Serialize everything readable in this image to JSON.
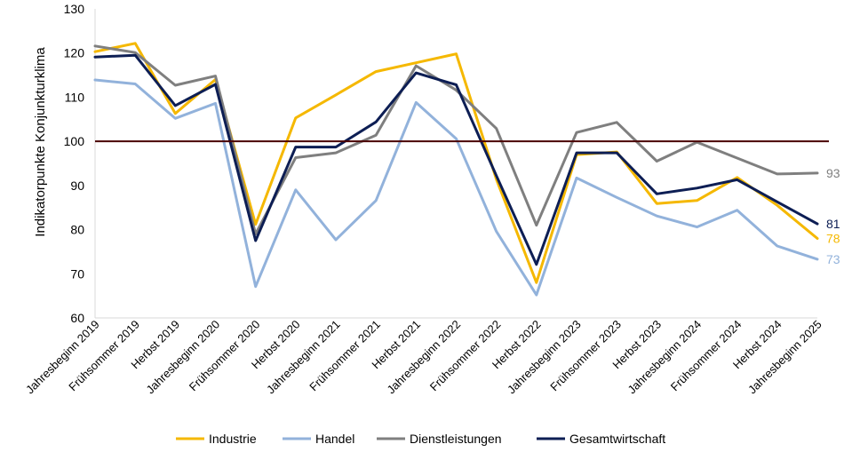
{
  "chart_data": {
    "type": "line",
    "title": "",
    "xlabel": "",
    "ylabel": "Indikatorpunkte Konjunkturklima",
    "ylim": [
      60,
      130
    ],
    "yticks": [
      60,
      70,
      80,
      90,
      100,
      110,
      120,
      130
    ],
    "grid": false,
    "reference_line": 100,
    "legend_position": "bottom",
    "categories": [
      "Jahresbeginn 2019",
      "Frühsommer 2019",
      "Herbst 2019",
      "Jahresbeginn 2020",
      "Frühsommer 2020",
      "Herbst 2020",
      "Jahresbeginn 2021",
      "Frühsommer 2021",
      "Herbst 2021",
      "Jahresbeginn 2022",
      "Frühsommer 2022",
      "Herbst 2022",
      "Jahresbeginn 2023",
      "Frühsommer 2023",
      "Herbst 2023",
      "Jahresbeginn 2024",
      "Frühsommer 2024",
      "Herbst 2024",
      "Jahresbeginn 2025"
    ],
    "series": [
      {
        "name": "Industrie",
        "color": "#F5B800",
        "end_label": "78",
        "values": [
          120.3,
          122.2,
          106.3,
          114.0,
          81.2,
          105.3,
          110.5,
          115.8,
          117.8,
          119.8,
          91.4,
          68.0,
          97.0,
          97.6,
          85.9,
          86.6,
          91.8,
          85.5,
          78.0
        ]
      },
      {
        "name": "Handel",
        "color": "#92B2DB",
        "end_label": "73",
        "values": [
          113.9,
          113.0,
          105.2,
          108.6,
          67.1,
          89.0,
          77.7,
          86.6,
          108.8,
          100.6,
          79.6,
          65.2,
          91.7,
          87.3,
          83.1,
          80.6,
          84.4,
          76.3,
          73.3
        ]
      },
      {
        "name": "Dienstleistungen",
        "color": "#7F7F7F",
        "end_label": "93",
        "values": [
          121.6,
          120.1,
          112.7,
          114.8,
          79.0,
          96.3,
          97.4,
          101.4,
          117.1,
          111.6,
          102.9,
          81.0,
          102.0,
          104.3,
          95.5,
          99.8,
          96.2,
          92.6,
          92.8
        ]
      },
      {
        "name": "Gesamtwirtschaft",
        "color": "#0D1E54",
        "end_label": "81",
        "values": [
          119.1,
          119.5,
          108.1,
          112.9,
          77.5,
          98.7,
          98.7,
          104.4,
          115.5,
          112.8,
          92.2,
          72.1,
          97.4,
          97.4,
          88.1,
          89.4,
          91.3,
          86.3,
          81.3
        ]
      }
    ]
  },
  "colors": {
    "reference_line": "#4A0000",
    "axis": "#000000"
  }
}
